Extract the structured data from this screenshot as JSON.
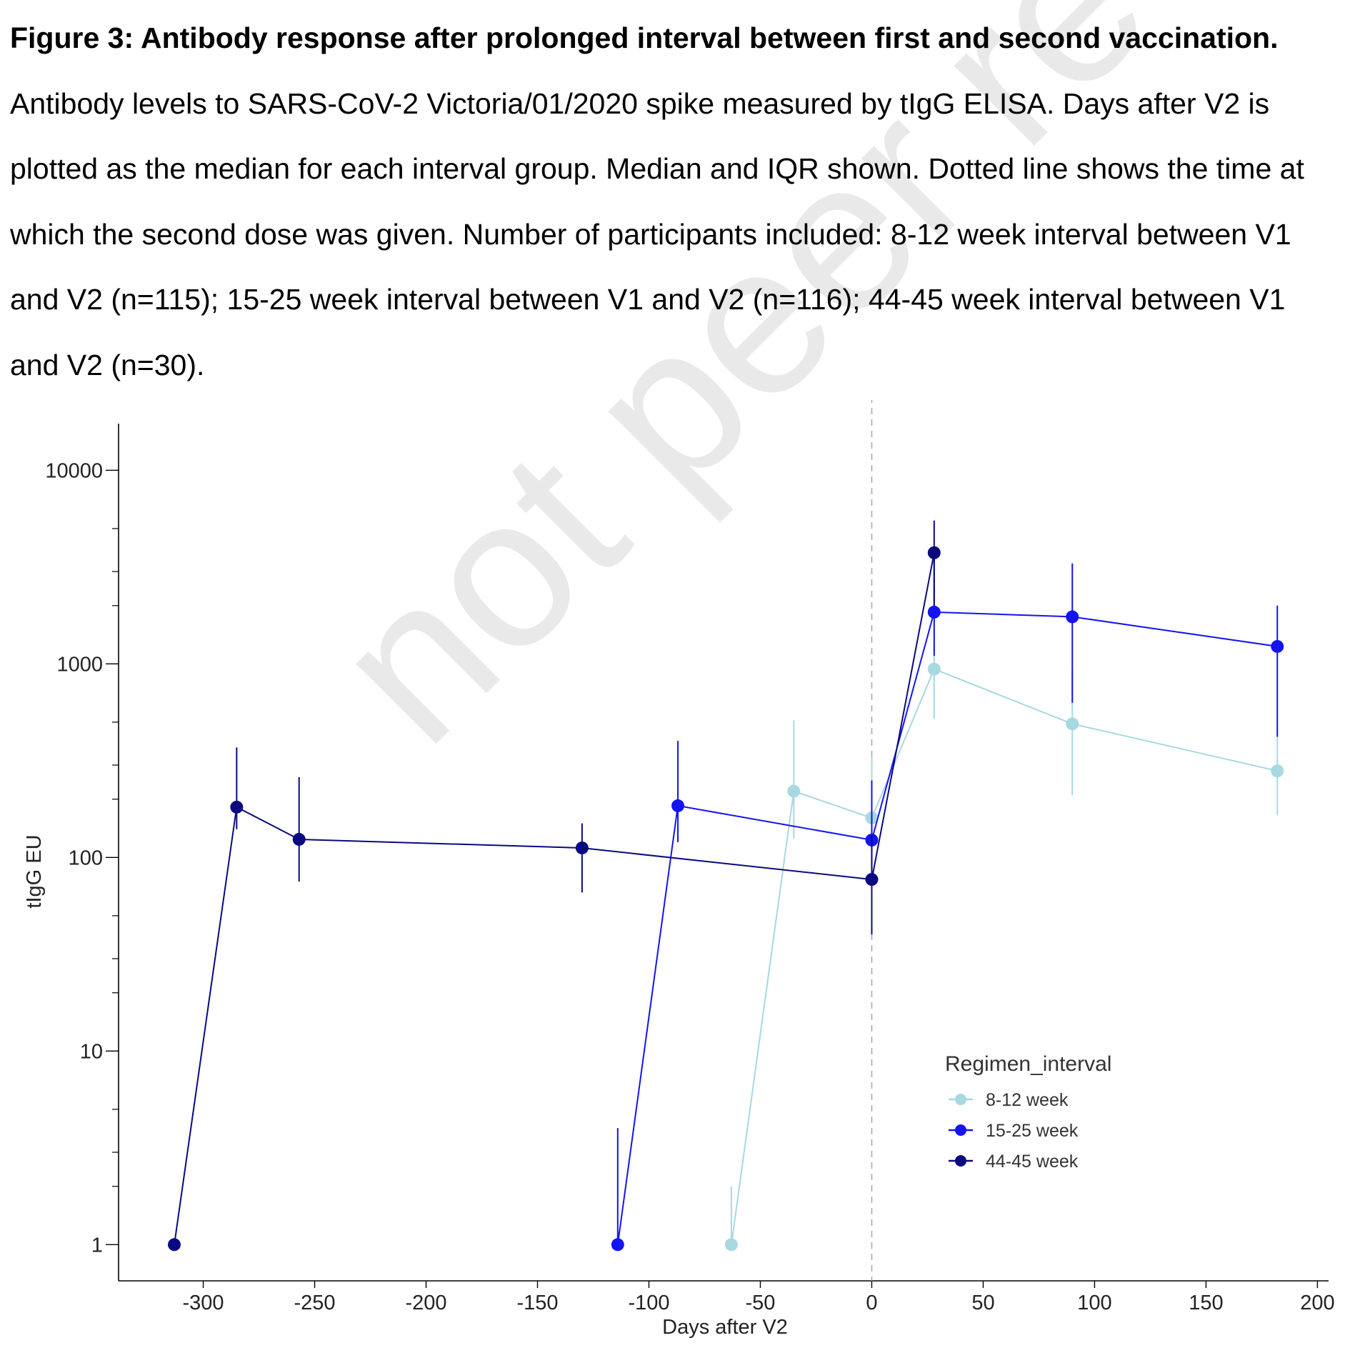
{
  "caption": {
    "bold": "Figure 3: Antibody response after prolonged interval between first and second vaccination.",
    "text": " Antibody levels to SARS-CoV-2 Victoria/01/2020 spike measured by tIgG ELISA. Days after V2 is plotted as the median for each interval group. Median and IQR shown. Dotted line shows the time at which the second dose was given. Number of participants included: 8-12 week interval between V1 and V2 (n=115); 15-25 week interval between V1 and V2 (n=116); 44-45 week interval between V1 and V2 (n=30)."
  },
  "watermark": "not peer reviewed",
  "chart_data": {
    "type": "line",
    "title": "",
    "xlabel": "Days after V2",
    "ylabel": "tIgG EU",
    "xlim": [
      -338,
      205
    ],
    "ylim": [
      0.65,
      16000
    ],
    "yscale": "log",
    "x_ticks": [
      -300,
      -250,
      -200,
      -150,
      -100,
      -50,
      0,
      50,
      100,
      150,
      200
    ],
    "y_ticks": [
      1,
      10,
      100,
      1000,
      10000
    ],
    "grid": false,
    "reference_line": {
      "x": 0,
      "style": "dashed",
      "color": "#aaaaaa"
    },
    "legend": {
      "title": "Regimen_interval",
      "position": "bottom-right"
    },
    "series": [
      {
        "name": "8-12 week",
        "color": "#a8d8e0",
        "points": [
          {
            "x": -63,
            "y": 1,
            "low": 1,
            "high": 2.0
          },
          {
            "x": -35,
            "y": 220,
            "low": 125,
            "high": 510
          },
          {
            "x": 0,
            "y": 160,
            "low": 100,
            "high": 330
          },
          {
            "x": 28,
            "y": 940,
            "low": 520,
            "high": 1700
          },
          {
            "x": 90,
            "y": 490,
            "low": 210,
            "high": 950
          },
          {
            "x": 182,
            "y": 280,
            "low": 165,
            "high": 420
          }
        ]
      },
      {
        "name": "15-25 week",
        "color": "#1414f0",
        "points": [
          {
            "x": -114,
            "y": 1,
            "low": 1,
            "high": 4.0
          },
          {
            "x": -87,
            "y": 185,
            "low": 120,
            "high": 400
          },
          {
            "x": 0,
            "y": 123,
            "low": 75,
            "high": 250
          },
          {
            "x": 28,
            "y": 1850,
            "low": 1100,
            "high": 3500
          },
          {
            "x": 90,
            "y": 1750,
            "low": 630,
            "high": 3300
          },
          {
            "x": 182,
            "y": 1230,
            "low": 420,
            "high": 2000
          }
        ]
      },
      {
        "name": "44-45 week",
        "color": "#0a0a80",
        "points": [
          {
            "x": -313,
            "y": 1,
            "low": 1,
            "high": 1
          },
          {
            "x": -285,
            "y": 182,
            "low": 140,
            "high": 370
          },
          {
            "x": -257,
            "y": 124,
            "low": 75,
            "high": 260
          },
          {
            "x": -130,
            "y": 112,
            "low": 66,
            "high": 150
          },
          {
            "x": 0,
            "y": 77,
            "low": 40,
            "high": 130
          },
          {
            "x": 28,
            "y": 3750,
            "low": 2000,
            "high": 5500
          }
        ]
      }
    ]
  }
}
